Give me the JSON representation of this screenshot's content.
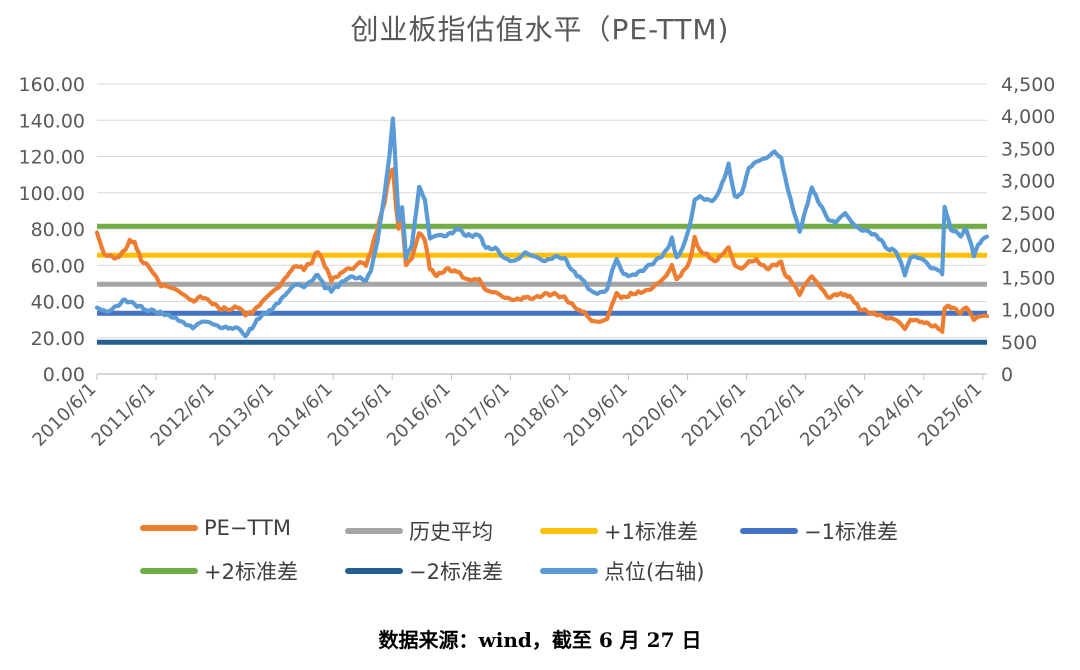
{
  "chart_data": {
    "type": "line",
    "title": "创业板指估值水平（PE-TTM)",
    "source": "数据来源：wind，截至 6 月 27 日",
    "x_labels": [
      "2010/6/1",
      "2011/6/1",
      "2012/6/1",
      "2013/6/1",
      "2014/6/1",
      "2015/6/1",
      "2016/6/1",
      "2017/6/1",
      "2018/6/1",
      "2019/6/1",
      "2020/6/1",
      "2021/6/1",
      "2022/6/1",
      "2023/6/1",
      "2024/6/1",
      "2025/6/1"
    ],
    "x_range": [
      "2010/6/1",
      "2025/6/27"
    ],
    "y_left": {
      "min": 0,
      "max": 160,
      "ticks": [
        "0.00",
        "20.00",
        "40.00",
        "60.00",
        "80.00",
        "100.00",
        "120.00",
        "140.00",
        "160.00"
      ]
    },
    "y_right": {
      "min": 0,
      "max": 4500,
      "ticks": [
        "0",
        "500",
        "1,000",
        "1,500",
        "2,000",
        "2,500",
        "3,000",
        "3,500",
        "4,000",
        "4,500"
      ]
    },
    "grid": true,
    "legend_position": "bottom",
    "series": [
      {
        "name": "PE-TTM",
        "axis": "left",
        "color": "#ED7D31",
        "points": [
          [
            "2010/6/1",
            78
          ],
          [
            "2010/7/15",
            66
          ],
          [
            "2010/10/1",
            64
          ],
          [
            "2010/11/20",
            68
          ],
          [
            "2010/12/20",
            74
          ],
          [
            "2011/1/20",
            73
          ],
          [
            "2011/3/1",
            63
          ],
          [
            "2011/5/1",
            58
          ],
          [
            "2011/7/1",
            49
          ],
          [
            "2011/9/1",
            48
          ],
          [
            "2011/11/1",
            45
          ],
          [
            "2011/12/15",
            42
          ],
          [
            "2012/1/20",
            40
          ],
          [
            "2012/3/1",
            43
          ],
          [
            "2012/5/1",
            40
          ],
          [
            "2012/7/1",
            36
          ],
          [
            "2012/9/1",
            36
          ],
          [
            "2012/11/1",
            37
          ],
          [
            "2012/12/5",
            33
          ],
          [
            "2013/1/15",
            34
          ],
          [
            "2013/3/1",
            38
          ],
          [
            "2013/5/1",
            44
          ],
          [
            "2013/7/1",
            48
          ],
          [
            "2013/9/1",
            56
          ],
          [
            "2013/10/15",
            60
          ],
          [
            "2013/12/1",
            58
          ],
          [
            "2014/1/20",
            62
          ],
          [
            "2014/2/25",
            68
          ],
          [
            "2014/4/10",
            60
          ],
          [
            "2014/5/20",
            52
          ],
          [
            "2014/7/1",
            54
          ],
          [
            "2014/8/20",
            58
          ],
          [
            "2014/10/1",
            58
          ],
          [
            "2014/11/15",
            62
          ],
          [
            "2014/12/20",
            60
          ],
          [
            "2015/1/20",
            68
          ],
          [
            "2015/3/1",
            80
          ],
          [
            "2015/4/15",
            95
          ],
          [
            "2015/5/15",
            110
          ],
          [
            "2015/6/5",
            113
          ],
          [
            "2015/6/25",
            92
          ],
          [
            "2015/7/10",
            80
          ],
          [
            "2015/8/1",
            86
          ],
          [
            "2015/8/25",
            60
          ],
          [
            "2015/10/1",
            64
          ],
          [
            "2015/11/15",
            78
          ],
          [
            "2015/12/20",
            74
          ],
          [
            "2016/1/20",
            58
          ],
          [
            "2016/3/1",
            54
          ],
          [
            "2016/5/1",
            58
          ],
          [
            "2016/7/15",
            56
          ],
          [
            "2016/9/1",
            52
          ],
          [
            "2016/11/20",
            52
          ],
          [
            "2017/1/1",
            46
          ],
          [
            "2017/3/1",
            45
          ],
          [
            "2017/5/1",
            42
          ],
          [
            "2017/7/1",
            41
          ],
          [
            "2017/9/1",
            42
          ],
          [
            "2017/11/1",
            42
          ],
          [
            "2018/1/1",
            44
          ],
          [
            "2018/3/1",
            44
          ],
          [
            "2018/5/1",
            42
          ],
          [
            "2018/6/20",
            38
          ],
          [
            "2018/8/1",
            35
          ],
          [
            "2018/9/1",
            34
          ],
          [
            "2018/10/20",
            29
          ],
          [
            "2018/12/20",
            29
          ],
          [
            "2019/1/20",
            30
          ],
          [
            "2019/2/20",
            38
          ],
          [
            "2019/3/20",
            44
          ],
          [
            "2019/5/1",
            42
          ],
          [
            "2019/6/15",
            44
          ],
          [
            "2019/8/1",
            45
          ],
          [
            "2019/10/1",
            46
          ],
          [
            "2019/12/1",
            50
          ],
          [
            "2020/1/20",
            54
          ],
          [
            "2020/2/25",
            60
          ],
          [
            "2020/3/25",
            52
          ],
          [
            "2020/5/1",
            56
          ],
          [
            "2020/6/15",
            62
          ],
          [
            "2020/7/15",
            75
          ],
          [
            "2020/8/15",
            68
          ],
          [
            "2020/10/1",
            66
          ],
          [
            "2020/11/15",
            62
          ],
          [
            "2021/1/1",
            66
          ],
          [
            "2021/2/10",
            70
          ],
          [
            "2021/3/20",
            60
          ],
          [
            "2021/5/1",
            58
          ],
          [
            "2021/6/15",
            62
          ],
          [
            "2021/8/1",
            63
          ],
          [
            "2021/10/1",
            58
          ],
          [
            "2021/11/20",
            60
          ],
          [
            "2022/1/1",
            62
          ],
          [
            "2022/1/25",
            55
          ],
          [
            "2022/3/1",
            52
          ],
          [
            "2022/4/25",
            44
          ],
          [
            "2022/6/1",
            50
          ],
          [
            "2022/7/10",
            54
          ],
          [
            "2022/8/15",
            50
          ],
          [
            "2022/10/20",
            42
          ],
          [
            "2022/12/1",
            44
          ],
          [
            "2023/2/1",
            44
          ],
          [
            "2023/3/15",
            42
          ],
          [
            "2023/5/1",
            36
          ],
          [
            "2023/7/1",
            34
          ],
          [
            "2023/8/15",
            33
          ],
          [
            "2023/10/20",
            31
          ],
          [
            "2023/12/15",
            30
          ],
          [
            "2024/2/5",
            25
          ],
          [
            "2024/3/10",
            30
          ],
          [
            "2024/5/20",
            29
          ],
          [
            "2024/7/15",
            27
          ],
          [
            "2024/9/15",
            25
          ],
          [
            "2024/9/23",
            24
          ],
          [
            "2024/10/8",
            37
          ],
          [
            "2024/11/15",
            37
          ],
          [
            "2025/1/15",
            34
          ],
          [
            "2025/2/20",
            37
          ],
          [
            "2025/4/7",
            30
          ],
          [
            "2025/5/15",
            32
          ],
          [
            "2025/6/27",
            32
          ]
        ]
      },
      {
        "name": "历史平均",
        "axis": "left",
        "color": "#A5A5A5",
        "value": 49.5
      },
      {
        "name": "+1标准差",
        "axis": "left",
        "color": "#FFC000",
        "value": 65.5
      },
      {
        "name": "−1标准差",
        "axis": "left",
        "color": "#4472C4",
        "value": 33.5
      },
      {
        "name": "+2标准差",
        "axis": "left",
        "color": "#70AD47",
        "value": 81.5
      },
      {
        "name": "−2标准差",
        "axis": "left",
        "color": "#255E91",
        "value": 17.5
      },
      {
        "name": "点位(右轴)",
        "axis": "right",
        "color": "#5B9BD5",
        "points": [
          [
            "2010/6/1",
            1030
          ],
          [
            "2010/8/1",
            960
          ],
          [
            "2010/10/1",
            1050
          ],
          [
            "2010/11/20",
            1150
          ],
          [
            "2011/1/20",
            1080
          ],
          [
            "2011/4/1",
            1000
          ],
          [
            "2011/6/1",
            970
          ],
          [
            "2011/9/1",
            900
          ],
          [
            "2011/12/1",
            780
          ],
          [
            "2012/1/15",
            720
          ],
          [
            "2012/3/15",
            820
          ],
          [
            "2012/5/1",
            800
          ],
          [
            "2012/7/1",
            720
          ],
          [
            "2012/9/1",
            720
          ],
          [
            "2012/11/1",
            700
          ],
          [
            "2012/12/5",
            600
          ],
          [
            "2013/1/15",
            720
          ],
          [
            "2013/3/1",
            880
          ],
          [
            "2013/5/15",
            1000
          ],
          [
            "2013/7/1",
            1120
          ],
          [
            "2013/9/1",
            1300
          ],
          [
            "2013/10/15",
            1400
          ],
          [
            "2013/12/1",
            1350
          ],
          [
            "2014/1/20",
            1450
          ],
          [
            "2014/2/25",
            1550
          ],
          [
            "2014/4/10",
            1350
          ],
          [
            "2014/5/20",
            1300
          ],
          [
            "2014/7/1",
            1370
          ],
          [
            "2014/9/1",
            1500
          ],
          [
            "2014/11/1",
            1500
          ],
          [
            "2014/12/20",
            1450
          ],
          [
            "2015/1/20",
            1600
          ],
          [
            "2015/3/1",
            2050
          ],
          [
            "2015/4/15",
            2800
          ],
          [
            "2015/5/15",
            3400
          ],
          [
            "2015/6/5",
            3980
          ],
          [
            "2015/6/25",
            3100
          ],
          [
            "2015/7/10",
            2400
          ],
          [
            "2015/8/1",
            2600
          ],
          [
            "2015/8/25",
            1800
          ],
          [
            "2015/10/1",
            2000
          ],
          [
            "2015/11/15",
            2900
          ],
          [
            "2015/12/20",
            2700
          ],
          [
            "2016/1/20",
            2100
          ],
          [
            "2016/3/1",
            2150
          ],
          [
            "2016/5/1",
            2150
          ],
          [
            "2016/7/15",
            2250
          ],
          [
            "2016/9/1",
            2150
          ],
          [
            "2016/11/20",
            2150
          ],
          [
            "2017/1/1",
            1950
          ],
          [
            "2017/3/1",
            1950
          ],
          [
            "2017/5/1",
            1780
          ],
          [
            "2017/7/1",
            1750
          ],
          [
            "2017/9/1",
            1880
          ],
          [
            "2017/11/1",
            1820
          ],
          [
            "2018/1/1",
            1750
          ],
          [
            "2018/3/1",
            1820
          ],
          [
            "2018/5/1",
            1800
          ],
          [
            "2018/6/20",
            1600
          ],
          [
            "2018/8/1",
            1500
          ],
          [
            "2018/9/1",
            1420
          ],
          [
            "2018/10/20",
            1260
          ],
          [
            "2018/12/20",
            1260
          ],
          [
            "2019/1/20",
            1300
          ],
          [
            "2019/2/20",
            1600
          ],
          [
            "2019/3/20",
            1780
          ],
          [
            "2019/5/1",
            1550
          ],
          [
            "2019/6/15",
            1520
          ],
          [
            "2019/8/1",
            1570
          ],
          [
            "2019/10/1",
            1670
          ],
          [
            "2019/12/1",
            1780
          ],
          [
            "2020/1/20",
            1900
          ],
          [
            "2020/2/25",
            2100
          ],
          [
            "2020/3/25",
            1800
          ],
          [
            "2020/5/1",
            1950
          ],
          [
            "2020/6/15",
            2300
          ],
          [
            "2020/7/15",
            2700
          ],
          [
            "2020/8/15",
            2750
          ],
          [
            "2020/10/1",
            2700
          ],
          [
            "2020/11/15",
            2700
          ],
          [
            "2021/1/1",
            2950
          ],
          [
            "2021/2/10",
            3250
          ],
          [
            "2021/3/20",
            2750
          ],
          [
            "2021/5/1",
            2800
          ],
          [
            "2021/6/15",
            3200
          ],
          [
            "2021/8/1",
            3300
          ],
          [
            "2021/10/1",
            3350
          ],
          [
            "2021/11/20",
            3450
          ],
          [
            "2022/1/1",
            3350
          ],
          [
            "2022/1/25",
            3050
          ],
          [
            "2022/3/1",
            2700
          ],
          [
            "2022/4/25",
            2200
          ],
          [
            "2022/6/1",
            2550
          ],
          [
            "2022/7/10",
            2900
          ],
          [
            "2022/8/15",
            2700
          ],
          [
            "2022/10/20",
            2400
          ],
          [
            "2022/12/1",
            2350
          ],
          [
            "2023/2/1",
            2500
          ],
          [
            "2023/3/15",
            2350
          ],
          [
            "2023/5/1",
            2250
          ],
          [
            "2023/7/1",
            2200
          ],
          [
            "2023/8/15",
            2150
          ],
          [
            "2023/10/20",
            1950
          ],
          [
            "2023/12/15",
            1900
          ],
          [
            "2024/2/5",
            1550
          ],
          [
            "2024/3/10",
            1820
          ],
          [
            "2024/5/20",
            1800
          ],
          [
            "2024/7/15",
            1650
          ],
          [
            "2024/9/15",
            1600
          ],
          [
            "2024/9/23",
            1550
          ],
          [
            "2024/10/8",
            2600
          ],
          [
            "2024/11/15",
            2250
          ],
          [
            "2025/1/15",
            2150
          ],
          [
            "2025/2/20",
            2250
          ],
          [
            "2025/4/7",
            1850
          ],
          [
            "2025/5/15",
            2050
          ],
          [
            "2025/6/27",
            2130
          ]
        ]
      }
    ]
  },
  "legend": {
    "items": [
      {
        "label": "PE−TTM",
        "color": "#ED7D31"
      },
      {
        "label": "历史平均",
        "color": "#A5A5A5"
      },
      {
        "label": "+1标准差",
        "color": "#FFC000"
      },
      {
        "label": "−1标准差",
        "color": "#4472C4"
      },
      {
        "label": "+2标准差",
        "color": "#70AD47"
      },
      {
        "label": "−2标准差",
        "color": "#255E91"
      },
      {
        "label": "点位(右轴)",
        "color": "#5B9BD5"
      }
    ]
  }
}
